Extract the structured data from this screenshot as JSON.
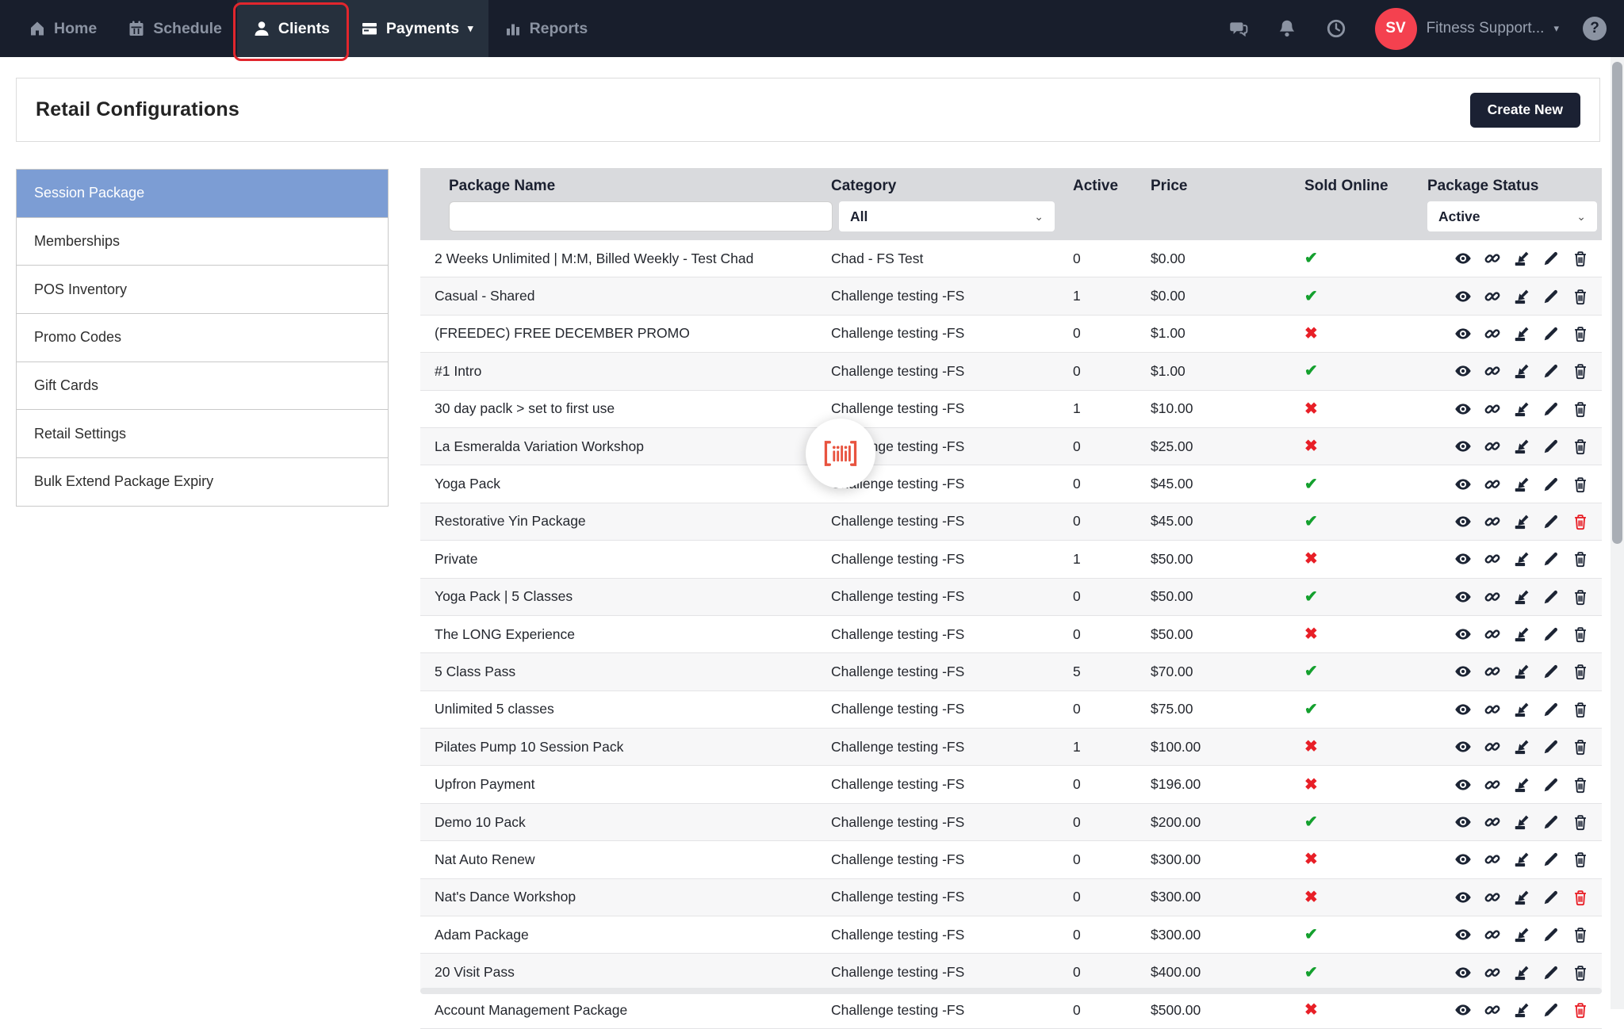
{
  "nav": {
    "items": [
      {
        "label": "Home",
        "icon": "home-icon",
        "highlighted": false,
        "annotated": false
      },
      {
        "label": "Schedule",
        "icon": "calendar-icon",
        "highlighted": false,
        "annotated": false
      },
      {
        "label": "Clients",
        "icon": "person-icon",
        "highlighted": true,
        "annotated": true
      },
      {
        "label": "Payments",
        "icon": "credit-card-icon",
        "highlighted": true,
        "annotated": false,
        "dropdown": true
      },
      {
        "label": "Reports",
        "icon": "bar-chart-icon",
        "highlighted": false,
        "annotated": false
      }
    ],
    "payments_caret": "▾",
    "right_icons": [
      "chat-icon",
      "bell-icon",
      "clock-icon"
    ],
    "user": {
      "initials": "SV",
      "name": "Fitness Support...",
      "caret": "▾"
    },
    "help_label": "?"
  },
  "page_header": {
    "title": "Retail Configurations",
    "create_button_label": "Create New"
  },
  "sidebar": {
    "items": [
      {
        "label": "Session Package",
        "selected": true
      },
      {
        "label": "Memberships",
        "selected": false
      },
      {
        "label": "POS Inventory",
        "selected": false
      },
      {
        "label": "Promo Codes",
        "selected": false
      },
      {
        "label": "Gift Cards",
        "selected": false
      },
      {
        "label": "Retail Settings",
        "selected": false
      },
      {
        "label": "Bulk Extend Package Expiry",
        "selected": false
      }
    ]
  },
  "table": {
    "columns": {
      "name": "Package Name",
      "category": "Category",
      "active": "Active",
      "price": "Price",
      "sold_online": "Sold Online",
      "status": "Package Status"
    },
    "filters": {
      "package_name_value": "",
      "category_selected": "All",
      "status_selected": "Active",
      "chevron": "⌄"
    },
    "row_action_icons": [
      "eye-icon",
      "link-icon",
      "import-icon",
      "pencil-icon",
      "trash-icon"
    ],
    "sold_online_glyphs": {
      "yes": "✔",
      "no": "✖"
    },
    "rows": [
      {
        "name": "2 Weeks Unlimited | M:M, Billed Weekly - Test Chad",
        "category": "Chad - FS Test",
        "active": "0",
        "price": "$0.00",
        "sold_online": true,
        "delete_red": false
      },
      {
        "name": "Casual - Shared",
        "category": "Challenge testing -FS",
        "active": "1",
        "price": "$0.00",
        "sold_online": true,
        "delete_red": false
      },
      {
        "name": "(FREEDEC) FREE DECEMBER PROMO",
        "category": "Challenge testing -FS",
        "active": "0",
        "price": "$1.00",
        "sold_online": false,
        "delete_red": false
      },
      {
        "name": "#1 Intro",
        "category": "Challenge testing -FS",
        "active": "0",
        "price": "$1.00",
        "sold_online": true,
        "delete_red": false
      },
      {
        "name": "30 day paclk > set to first use",
        "category": "Challenge testing -FS",
        "active": "1",
        "price": "$10.00",
        "sold_online": false,
        "delete_red": false
      },
      {
        "name": "La Esmeralda Variation Workshop",
        "category": "Challenge testing -FS",
        "active": "0",
        "price": "$25.00",
        "sold_online": false,
        "delete_red": false
      },
      {
        "name": "Yoga Pack",
        "category": "Challenge testing -FS",
        "active": "0",
        "price": "$45.00",
        "sold_online": true,
        "delete_red": false
      },
      {
        "name": "Restorative Yin Package",
        "category": "Challenge testing -FS",
        "active": "0",
        "price": "$45.00",
        "sold_online": true,
        "delete_red": true
      },
      {
        "name": "Private",
        "category": "Challenge testing -FS",
        "active": "1",
        "price": "$50.00",
        "sold_online": false,
        "delete_red": false
      },
      {
        "name": "Yoga Pack | 5 Classes",
        "category": "Challenge testing -FS",
        "active": "0",
        "price": "$50.00",
        "sold_online": true,
        "delete_red": false
      },
      {
        "name": "The LONG Experience",
        "category": "Challenge testing -FS",
        "active": "0",
        "price": "$50.00",
        "sold_online": false,
        "delete_red": false
      },
      {
        "name": "5 Class Pass",
        "category": "Challenge testing -FS",
        "active": "5",
        "price": "$70.00",
        "sold_online": true,
        "delete_red": false
      },
      {
        "name": "Unlimited 5 classes",
        "category": "Challenge testing -FS",
        "active": "0",
        "price": "$75.00",
        "sold_online": true,
        "delete_red": false
      },
      {
        "name": "Pilates Pump 10 Session Pack",
        "category": "Challenge testing -FS",
        "active": "1",
        "price": "$100.00",
        "sold_online": false,
        "delete_red": false
      },
      {
        "name": "Upfron Payment",
        "category": "Challenge testing -FS",
        "active": "0",
        "price": "$196.00",
        "sold_online": false,
        "delete_red": false
      },
      {
        "name": "Demo 10 Pack",
        "category": "Challenge testing -FS",
        "active": "0",
        "price": "$200.00",
        "sold_online": true,
        "delete_red": false
      },
      {
        "name": "Nat Auto Renew",
        "category": "Challenge testing -FS",
        "active": "0",
        "price": "$300.00",
        "sold_online": false,
        "delete_red": false
      },
      {
        "name": "Nat's Dance Workshop",
        "category": "Challenge testing -FS",
        "active": "0",
        "price": "$300.00",
        "sold_online": false,
        "delete_red": true
      },
      {
        "name": "Adam Package",
        "category": "Challenge testing -FS",
        "active": "0",
        "price": "$300.00",
        "sold_online": true,
        "delete_red": false
      },
      {
        "name": "20 Visit Pass",
        "category": "Challenge testing -FS",
        "active": "0",
        "price": "$400.00",
        "sold_online": true,
        "delete_red": false
      },
      {
        "name": "Account Management Package",
        "category": "Challenge testing -FS",
        "active": "0",
        "price": "$500.00",
        "sold_online": false,
        "delete_red": true
      }
    ]
  },
  "loader": {
    "icon": "barcode-scanner-icon"
  },
  "colors": {
    "navbar_bg": "#181e2c",
    "nav_highlight_bg": "#26303d",
    "annotation_red": "#e1262d",
    "avatar_red": "#f4414f",
    "sidebar_selected_blue": "#7c9dd4",
    "success_green": "#14a02e",
    "danger_red": "#e81f27",
    "button_dark": "#1b2133",
    "loader_icon_red": "#e8533f"
  }
}
